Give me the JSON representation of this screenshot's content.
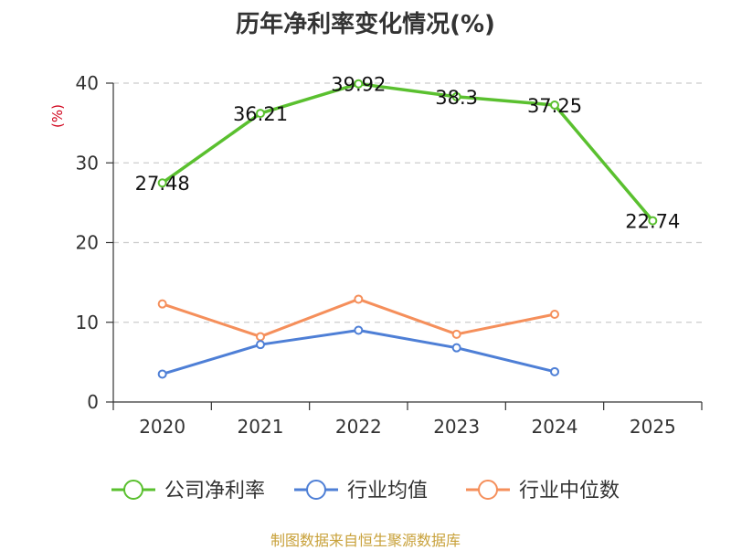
{
  "chart_data": {
    "type": "line",
    "title": "历年净利率变化情况(%)",
    "ylabel": "(%)",
    "xlabel": "",
    "ylim": [
      0,
      40
    ],
    "yticks": [
      0,
      10,
      20,
      30,
      40
    ],
    "categories": [
      "2020",
      "2021",
      "2022",
      "2023",
      "2024",
      "2025"
    ],
    "series": [
      {
        "name": "公司净利率",
        "color": "#5ac02f",
        "values": [
          27.48,
          36.21,
          39.92,
          38.3,
          37.25,
          22.74
        ],
        "labels": [
          "27.48",
          "36.21",
          "39.92",
          "38.3",
          "37.25",
          "22.74"
        ]
      },
      {
        "name": "行业均值",
        "color": "#4e7fd6",
        "values": [
          3.5,
          7.2,
          9.0,
          6.8,
          3.8,
          null
        ]
      },
      {
        "name": "行业中位数",
        "color": "#f58f5b",
        "values": [
          12.3,
          8.2,
          12.9,
          8.5,
          11.0,
          null
        ]
      }
    ],
    "grid": true,
    "legend": "bottom"
  },
  "source_text": "制图数据来自恒生聚源数据库"
}
